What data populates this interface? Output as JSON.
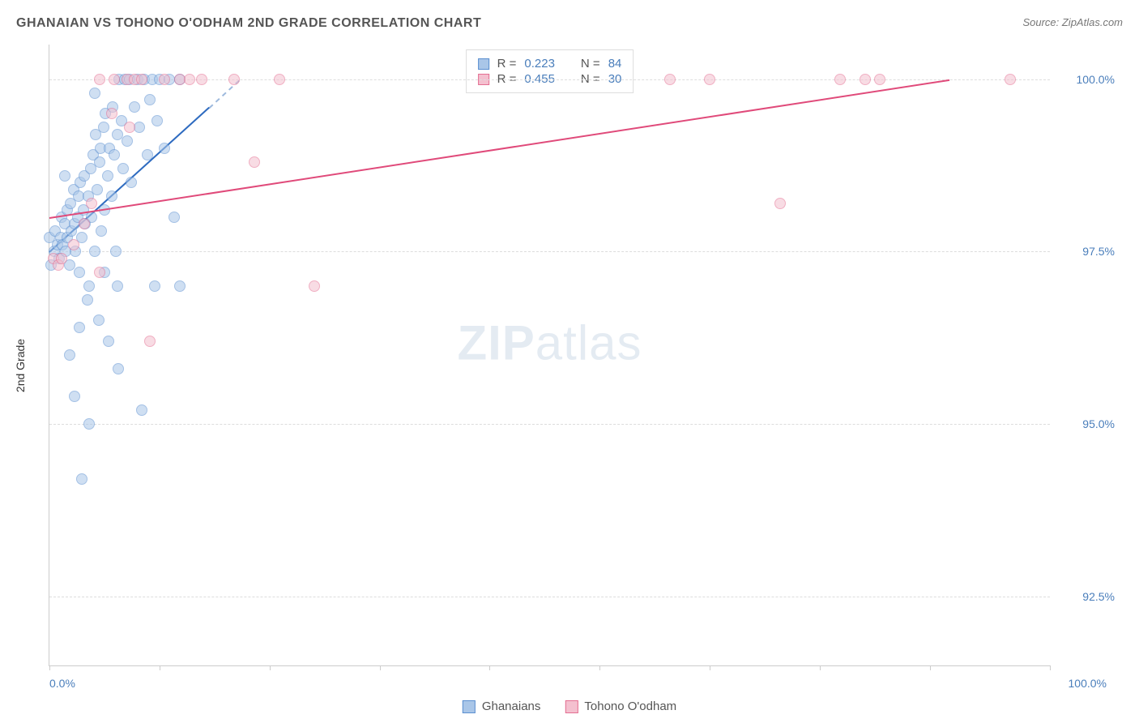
{
  "title": "GHANAIAN VS TOHONO O'ODHAM 2ND GRADE CORRELATION CHART",
  "source": "Source: ZipAtlas.com",
  "watermark_zip": "ZIP",
  "watermark_atlas": "atlas",
  "chart": {
    "type": "scatter",
    "y_axis_label": "2nd Grade",
    "x_min": 0,
    "x_max": 100,
    "y_min": 91.5,
    "y_max": 100.5,
    "y_ticks": [
      92.5,
      95.0,
      97.5,
      100.0
    ],
    "y_tick_labels": [
      "92.5%",
      "95.0%",
      "97.5%",
      "100.0%"
    ],
    "x_tick_positions": [
      0,
      11,
      22,
      33,
      44,
      55,
      66,
      77,
      88,
      100
    ],
    "x_label_min": "0.0%",
    "x_label_max": "100.0%",
    "grid_color": "#dddddd",
    "axis_color": "#cccccc",
    "background_color": "#ffffff",
    "marker_radius": 7,
    "marker_border_width": 1.2,
    "series": [
      {
        "name": "Ghanaians",
        "fill": "#a9c6e8",
        "stroke": "#5b8fd0",
        "fill_opacity": 0.55,
        "trend": {
          "x1": 0,
          "y1": 97.5,
          "x2": 16,
          "y2": 99.6,
          "color": "#2e6bc0",
          "width": 2.2
        },
        "stats": {
          "R": "0.223",
          "N": "84"
        },
        "points": [
          [
            0.0,
            97.7
          ],
          [
            0.2,
            97.3
          ],
          [
            0.5,
            97.5
          ],
          [
            0.6,
            97.8
          ],
          [
            0.8,
            97.6
          ],
          [
            1.0,
            97.4
          ],
          [
            1.1,
            97.7
          ],
          [
            1.2,
            98.0
          ],
          [
            1.3,
            97.6
          ],
          [
            1.5,
            97.9
          ],
          [
            1.6,
            97.5
          ],
          [
            1.8,
            98.1
          ],
          [
            1.8,
            97.7
          ],
          [
            2.0,
            97.3
          ],
          [
            2.1,
            98.2
          ],
          [
            2.2,
            97.8
          ],
          [
            2.4,
            98.4
          ],
          [
            2.5,
            97.9
          ],
          [
            2.6,
            97.5
          ],
          [
            2.8,
            98.0
          ],
          [
            2.9,
            98.3
          ],
          [
            3.0,
            97.2
          ],
          [
            3.1,
            98.5
          ],
          [
            3.2,
            97.7
          ],
          [
            3.4,
            98.1
          ],
          [
            3.5,
            98.6
          ],
          [
            3.6,
            97.9
          ],
          [
            3.8,
            96.8
          ],
          [
            3.9,
            98.3
          ],
          [
            4.0,
            97.0
          ],
          [
            4.1,
            98.7
          ],
          [
            4.2,
            98.0
          ],
          [
            4.4,
            98.9
          ],
          [
            4.5,
            97.5
          ],
          [
            4.6,
            99.2
          ],
          [
            4.8,
            98.4
          ],
          [
            4.9,
            96.5
          ],
          [
            5.0,
            98.8
          ],
          [
            5.1,
            99.0
          ],
          [
            5.2,
            97.8
          ],
          [
            5.4,
            99.3
          ],
          [
            5.5,
            98.1
          ],
          [
            5.6,
            99.5
          ],
          [
            5.8,
            98.6
          ],
          [
            5.9,
            96.2
          ],
          [
            6.0,
            99.0
          ],
          [
            6.2,
            98.3
          ],
          [
            6.3,
            99.6
          ],
          [
            6.5,
            98.9
          ],
          [
            6.6,
            97.5
          ],
          [
            6.8,
            99.2
          ],
          [
            6.9,
            95.8
          ],
          [
            7.0,
            100.0
          ],
          [
            7.2,
            99.4
          ],
          [
            7.4,
            98.7
          ],
          [
            7.5,
            100.0
          ],
          [
            7.8,
            99.1
          ],
          [
            8.0,
            100.0
          ],
          [
            8.2,
            98.5
          ],
          [
            8.5,
            99.6
          ],
          [
            8.8,
            100.0
          ],
          [
            9.0,
            99.3
          ],
          [
            9.2,
            95.2
          ],
          [
            9.5,
            100.0
          ],
          [
            9.8,
            98.9
          ],
          [
            10.0,
            99.7
          ],
          [
            10.3,
            100.0
          ],
          [
            10.5,
            97.0
          ],
          [
            10.8,
            99.4
          ],
          [
            11.0,
            100.0
          ],
          [
            11.5,
            99.0
          ],
          [
            12.0,
            100.0
          ],
          [
            12.5,
            98.0
          ],
          [
            13.0,
            100.0
          ],
          [
            2.0,
            96.0
          ],
          [
            2.5,
            95.4
          ],
          [
            3.0,
            96.4
          ],
          [
            4.0,
            95.0
          ],
          [
            3.2,
            94.2
          ],
          [
            1.5,
            98.6
          ],
          [
            4.5,
            99.8
          ],
          [
            5.5,
            97.2
          ],
          [
            6.8,
            97.0
          ],
          [
            13.0,
            97.0
          ]
        ]
      },
      {
        "name": "Tohono O'odham",
        "fill": "#f4c0cf",
        "stroke": "#e46f92",
        "fill_opacity": 0.55,
        "trend": {
          "x1": 0,
          "y1": 98.0,
          "x2": 90,
          "y2": 100.0,
          "color": "#e04a7a",
          "width": 2.2
        },
        "stats": {
          "R": "0.455",
          "N": "30"
        },
        "points": [
          [
            0.4,
            97.4
          ],
          [
            0.9,
            97.3
          ],
          [
            1.2,
            97.4
          ],
          [
            2.4,
            97.6
          ],
          [
            3.5,
            97.9
          ],
          [
            4.2,
            98.2
          ],
          [
            5.0,
            100.0
          ],
          [
            6.5,
            100.0
          ],
          [
            7.8,
            100.0
          ],
          [
            8.5,
            100.0
          ],
          [
            9.2,
            100.0
          ],
          [
            10.0,
            96.2
          ],
          [
            11.5,
            100.0
          ],
          [
            13.0,
            100.0
          ],
          [
            15.2,
            100.0
          ],
          [
            18.5,
            100.0
          ],
          [
            20.5,
            98.8
          ],
          [
            23.0,
            100.0
          ],
          [
            5.0,
            97.2
          ],
          [
            26.5,
            97.0
          ],
          [
            62.0,
            100.0
          ],
          [
            66.0,
            100.0
          ],
          [
            73.0,
            98.2
          ],
          [
            79.0,
            100.0
          ],
          [
            81.5,
            100.0
          ],
          [
            83.0,
            100.0
          ],
          [
            96.0,
            100.0
          ],
          [
            6.2,
            99.5
          ],
          [
            8.0,
            99.3
          ],
          [
            14.0,
            100.0
          ]
        ]
      }
    ]
  },
  "stats_box": {
    "r_label": "R =",
    "n_label": "N ="
  },
  "legend": {
    "items": [
      "Ghanaians",
      "Tohono O'odham"
    ]
  }
}
